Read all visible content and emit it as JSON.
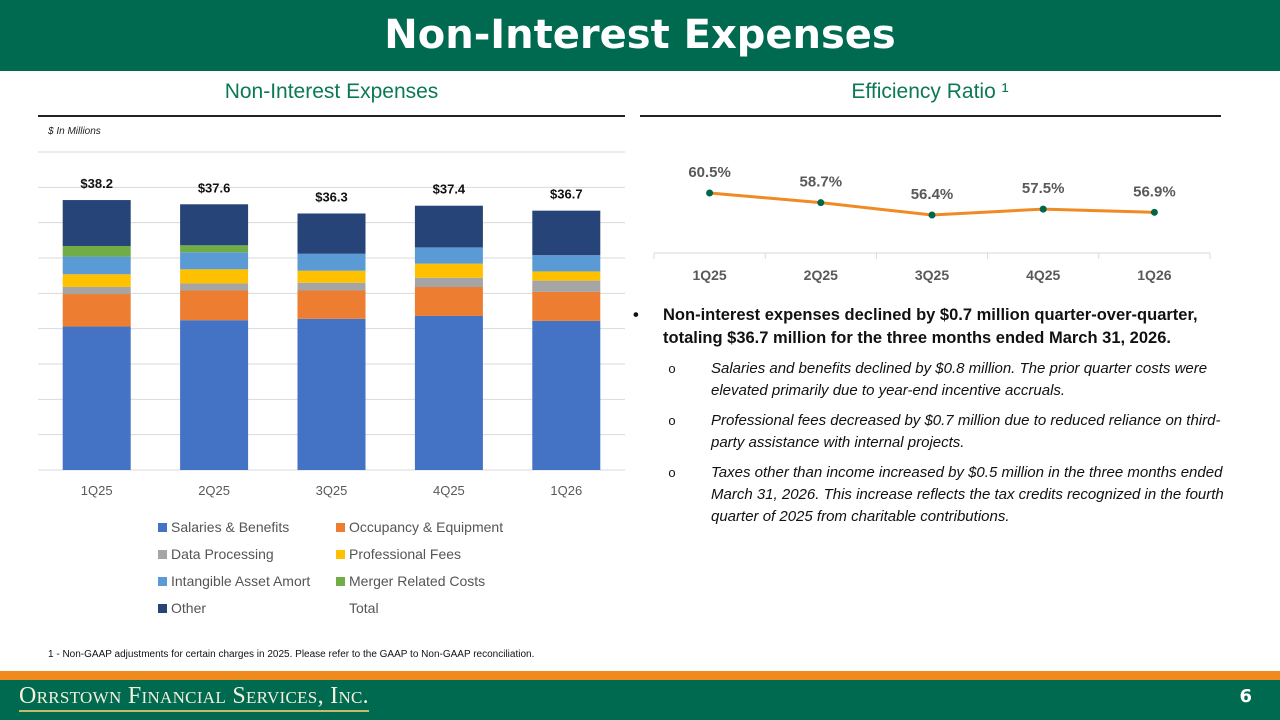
{
  "header": {
    "title": "Non-Interest Expenses"
  },
  "left": {
    "title": "Non-Interest Expenses",
    "unit": "$ In Millions"
  },
  "right": {
    "title": "Efficiency Ratio ¹"
  },
  "chart_data": [
    {
      "type": "bar",
      "stacked": true,
      "categories": [
        "1Q25",
        "2Q25",
        "3Q25",
        "4Q25",
        "1Q26"
      ],
      "ylim": [
        0,
        45
      ],
      "grid": true,
      "series": [
        {
          "name": "Salaries & Benefits",
          "color": "#4472C4",
          "values": [
            20.3,
            21.2,
            21.4,
            21.8,
            21.1
          ]
        },
        {
          "name": "Occupancy & Equipment",
          "color": "#ED7D31",
          "values": [
            4.6,
            4.2,
            4.0,
            4.1,
            4.1
          ]
        },
        {
          "name": "Data Processing",
          "color": "#A5A5A5",
          "values": [
            1.0,
            1.0,
            1.1,
            1.3,
            1.6
          ]
        },
        {
          "name": "Professional Fees",
          "color": "#FFC000",
          "values": [
            1.8,
            2.0,
            1.7,
            2.0,
            1.3
          ]
        },
        {
          "name": "Intangible Asset Amort",
          "color": "#5B9BD5",
          "values": [
            2.5,
            2.4,
            2.4,
            2.3,
            2.3
          ]
        },
        {
          "name": "Merger Related Costs",
          "color": "#70AD47",
          "values": [
            1.5,
            1.0,
            0,
            0,
            0
          ]
        },
        {
          "name": "Other",
          "color": "#264478",
          "values": [
            6.5,
            5.8,
            5.7,
            5.9,
            6.3
          ]
        },
        {
          "name": "Total",
          "color": "",
          "values": [
            38.2,
            37.6,
            36.3,
            37.4,
            36.7
          ]
        }
      ],
      "data_labels": [
        "$38.2",
        "$37.6",
        "$36.3",
        "$37.4",
        "$36.7"
      ],
      "legend": "bottom"
    },
    {
      "type": "line",
      "categories": [
        "1Q25",
        "2Q25",
        "3Q25",
        "4Q25",
        "1Q26"
      ],
      "values": [
        60.5,
        58.7,
        56.4,
        57.5,
        56.9
      ],
      "data_labels": [
        "60.5%",
        "58.7%",
        "56.4%",
        "57.5%",
        "56.9%"
      ],
      "line_color": "#F08A24",
      "marker_color": "#00664A",
      "grid": false
    }
  ],
  "notes": {
    "main": "Non-interest expenses declined by $0.7 million quarter-over-quarter, totaling $36.7 million for the three months ended March 31, 2026.",
    "subs": [
      "Salaries and benefits declined by $0.8 million. The prior quarter costs were elevated primarily due to year-end incentive accruals.",
      "Professional fees decreased by $0.7 million due to reduced reliance on third-party assistance with internal projects.",
      "Taxes other than income increased by $0.5 million in the three months ended March 31, 2026. This increase reflects the tax credits recognized in the fourth quarter of 2025 from charitable contributions."
    ],
    "bullet": "•",
    "sub_bullet": "o"
  },
  "footnote": "1 - Non-GAAP adjustments for certain charges in 2025. Please refer to the GAAP to Non-GAAP reconciliation.",
  "footer": {
    "logo": "Orrstown Financial Services, Inc.",
    "page": "6"
  }
}
